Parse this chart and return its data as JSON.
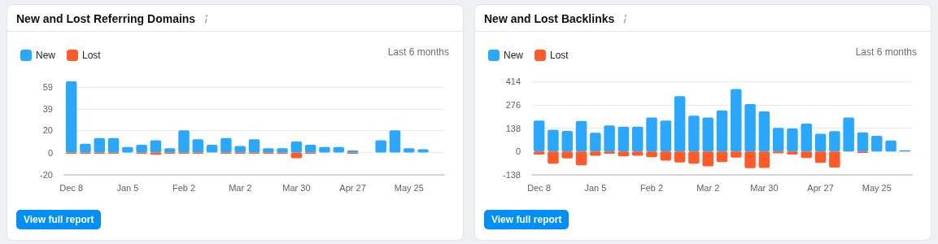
{
  "chart_data": [
    {
      "type": "bar",
      "title": "New and Lost Referring Domains",
      "stacked": true,
      "legend": "top left",
      "grid": "y",
      "categories": [
        "Dec 8",
        null,
        null,
        null,
        "Jan 5",
        null,
        null,
        null,
        "Feb 2",
        null,
        null,
        null,
        "Mar 2",
        null,
        null,
        null,
        "Mar 30",
        null,
        null,
        null,
        "Apr 27",
        null,
        null,
        null,
        "May 25",
        null,
        null
      ],
      "ylim": [
        -20,
        64
      ],
      "yticks": [
        -20,
        0,
        20,
        39,
        59
      ],
      "series": [
        {
          "name": "New",
          "color": "#2aa8ff",
          "values": [
            64,
            8,
            13,
            13,
            5,
            7,
            11,
            4,
            20,
            12,
            7,
            13,
            6,
            12,
            4,
            4,
            10,
            7,
            5,
            5,
            2,
            null,
            11,
            20,
            4,
            3,
            null
          ]
        },
        {
          "name": "Lost",
          "color": "#ff5a28",
          "values": [
            -1,
            -1,
            -1,
            -1,
            0,
            -1,
            -2,
            -1,
            -1,
            -1,
            0,
            -1,
            -1,
            -1,
            -1,
            -1,
            -5,
            -1,
            0,
            0,
            -1,
            null,
            0,
            0,
            0,
            0,
            null
          ]
        }
      ],
      "annotations": [
        "Last 6 months",
        "View full report"
      ]
    },
    {
      "type": "bar",
      "title": "New and Lost Backlinks",
      "stacked": true,
      "legend": "top left",
      "grid": "y",
      "categories": [
        "Dec 8",
        null,
        null,
        null,
        "Jan 5",
        null,
        null,
        null,
        "Feb 2",
        null,
        null,
        null,
        "Mar 2",
        null,
        null,
        null,
        "Mar 30",
        null,
        null,
        null,
        "Apr 27",
        null,
        null,
        null,
        "May 25",
        null,
        null
      ],
      "ylim": [
        -138,
        414
      ],
      "yticks": [
        -138,
        0,
        138,
        276,
        414
      ],
      "series": [
        {
          "name": "New",
          "color": "#2aa8ff",
          "values": [
            183,
            129,
            121,
            180,
            110,
            154,
            146,
            146,
            200,
            183,
            326,
            211,
            201,
            242,
            368,
            280,
            236,
            139,
            136,
            165,
            105,
            120,
            200,
            113,
            92,
            65,
            7
          ]
        },
        {
          "name": "Lost",
          "color": "#ff5a28",
          "values": [
            -18,
            -72,
            -41,
            -82,
            -25,
            -13,
            -29,
            -25,
            -34,
            -54,
            -65,
            -72,
            -88,
            -62,
            -36,
            -98,
            -97,
            -11,
            -18,
            -38,
            -67,
            -95,
            0,
            -8,
            0,
            0,
            0
          ]
        }
      ],
      "annotations": [
        "Last 6 months",
        "View full report"
      ]
    }
  ]
}
